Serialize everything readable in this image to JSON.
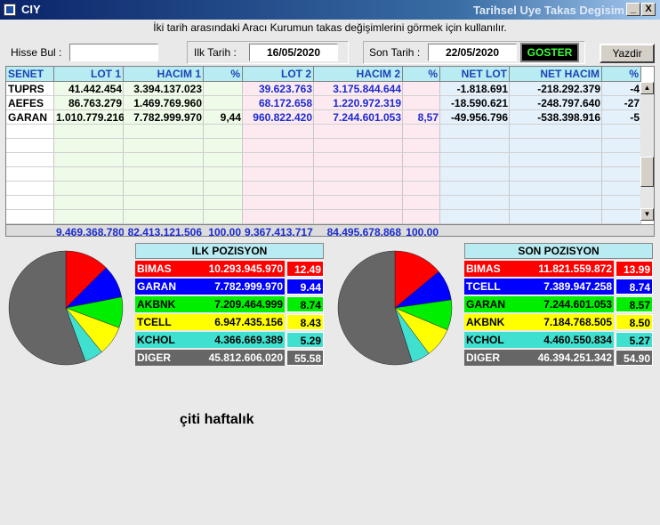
{
  "window": {
    "app_title": "CIY",
    "subtitle": "Tarihsel Uye Takas Degisim",
    "min_label": "_",
    "close_label": "X"
  },
  "hint": "İki tarih arasındaki  Aracı Kurumun takas değişimlerini görmek için kullanılır.",
  "form": {
    "hisse_label": "Hisse Bul :",
    "hisse_value": "",
    "ilk_label": "Ilk Tarih :",
    "ilk_value": "16/05/2020",
    "son_label": "Son Tarih :",
    "son_value": "22/05/2020",
    "goster_label": "GOSTER",
    "yazdir_label": "Yazdir"
  },
  "table": {
    "columns": [
      "SENET",
      "LOT 1",
      "HACIM 1",
      "%",
      "LOT 2",
      "HACIM 2",
      "%",
      "NET LOT",
      "NET HACIM",
      "%"
    ],
    "rows": [
      [
        "TUPRS",
        "41.442.454",
        "3.394.137.023",
        "",
        "39.623.763",
        "3.175.844.644",
        "",
        "-1.818.691",
        "-218.292.379",
        "-4"
      ],
      [
        "AEFES",
        "86.763.279",
        "1.469.769.960",
        "",
        "68.172.658",
        "1.220.972.319",
        "",
        "-18.590.621",
        "-248.797.640",
        "-27"
      ],
      [
        "GARAN",
        "1.010.779.216",
        "7.782.999.970",
        "9,44",
        "960.822.420",
        "7.244.601.053",
        "8,57",
        "-49.956.796",
        "-538.398.916",
        "-5"
      ]
    ],
    "totals": [
      "",
      "9.469.368.780",
      "82.413.121.506",
      "100,00",
      "9.367.413.717",
      "84.495.678.868",
      "100,00",
      "",
      "",
      ""
    ]
  },
  "ilk": {
    "title": "ILK POZISYON",
    "rows": [
      {
        "name": "BIMAS",
        "value": "10.293.945.970",
        "pct": "12.49",
        "share": 12.49,
        "color": "#ff0000",
        "text": "#ffffff"
      },
      {
        "name": "GARAN",
        "value": "7.782.999.970",
        "pct": "9.44",
        "share": 9.44,
        "color": "#0000ff",
        "text": "#ffffff"
      },
      {
        "name": "AKBNK",
        "value": "7.209.464.999",
        "pct": "8.74",
        "share": 8.74,
        "color": "#00ee00",
        "text": "#000000"
      },
      {
        "name": "TCELL",
        "value": "6.947.435.156",
        "pct": "8.43",
        "share": 8.43,
        "color": "#ffff00",
        "text": "#000000"
      },
      {
        "name": "KCHOL",
        "value": "4.366.669.389",
        "pct": "5.29",
        "share": 5.29,
        "color": "#40e0d0",
        "text": "#000000"
      },
      {
        "name": "DIGER",
        "value": "45.812.606.020",
        "pct": "55.58",
        "share": 55.58,
        "color": "#666666",
        "text": "#ffffff"
      }
    ]
  },
  "son": {
    "title": "SON POZISYON",
    "rows": [
      {
        "name": "BIMAS",
        "value": "11.821.559.872",
        "pct": "13.99",
        "share": 13.99,
        "color": "#ff0000",
        "text": "#ffffff"
      },
      {
        "name": "TCELL",
        "value": "7.389.947.258",
        "pct": "8.74",
        "share": 8.74,
        "color": "#0000ff",
        "text": "#ffffff"
      },
      {
        "name": "GARAN",
        "value": "7.244.601.053",
        "pct": "8.57",
        "share": 8.57,
        "color": "#00ee00",
        "text": "#000000"
      },
      {
        "name": "AKBNK",
        "value": "7.184.768.505",
        "pct": "8.50",
        "share": 8.5,
        "color": "#ffff00",
        "text": "#000000"
      },
      {
        "name": "KCHOL",
        "value": "4.460.550.834",
        "pct": "5.27",
        "share": 5.27,
        "color": "#40e0d0",
        "text": "#000000"
      },
      {
        "name": "DIGER",
        "value": "46.394.251.342",
        "pct": "54.90",
        "share": 54.9,
        "color": "#666666",
        "text": "#ffffff"
      }
    ]
  },
  "footnote": "çiti haftalık"
}
